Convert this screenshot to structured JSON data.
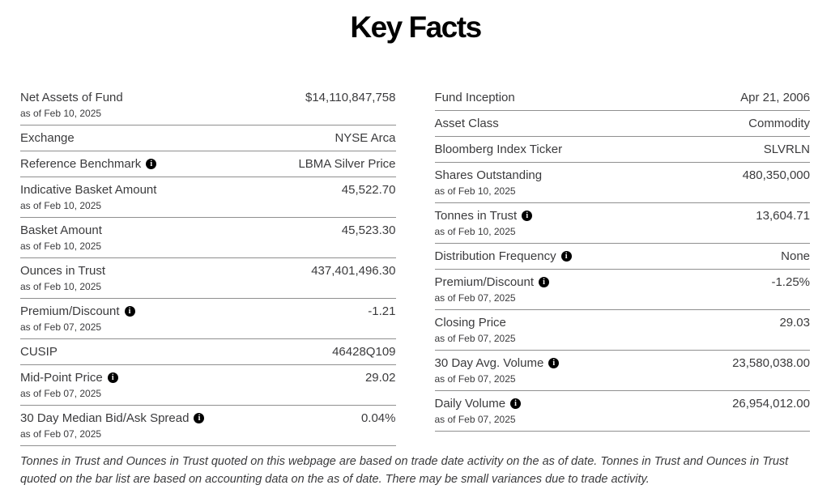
{
  "title": "Key Facts",
  "info_icon_glyph": "i",
  "columns": {
    "left": [
      {
        "label": "Net Assets of Fund",
        "asof": "as of Feb 10, 2025",
        "value": "$14,110,847,758",
        "info": false
      },
      {
        "label": "Exchange",
        "value": "NYSE Arca",
        "info": false
      },
      {
        "label": "Reference Benchmark",
        "value": "LBMA Silver Price",
        "info": true
      },
      {
        "label": "Indicative Basket Amount",
        "asof": "as of Feb 10, 2025",
        "value": "45,522.70",
        "info": false
      },
      {
        "label": "Basket Amount",
        "asof": "as of Feb 10, 2025",
        "value": "45,523.30",
        "info": false
      },
      {
        "label": "Ounces in Trust",
        "asof": "as of Feb 10, 2025",
        "value": "437,401,496.30",
        "info": false
      },
      {
        "label": "Premium/Discount",
        "asof": "as of Feb 07, 2025",
        "value": "-1.21",
        "info": true
      },
      {
        "label": "CUSIP",
        "value": "46428Q109",
        "info": false
      },
      {
        "label": "Mid-Point Price",
        "asof": "as of Feb 07, 2025",
        "value": "29.02",
        "info": true
      },
      {
        "label": "30 Day Median Bid/Ask Spread",
        "asof": "as of Feb 07, 2025",
        "value": "0.04%",
        "info": true
      }
    ],
    "right": [
      {
        "label": "Fund Inception",
        "value": "Apr 21, 2006",
        "info": false
      },
      {
        "label": "Asset Class",
        "value": "Commodity",
        "info": false
      },
      {
        "label": "Bloomberg Index Ticker",
        "value": "SLVRLN",
        "info": false
      },
      {
        "label": "Shares Outstanding",
        "asof": "as of Feb 10, 2025",
        "value": "480,350,000",
        "info": false
      },
      {
        "label": "Tonnes in Trust",
        "asof": "as of Feb 10, 2025",
        "value": "13,604.71",
        "info": true
      },
      {
        "label": "Distribution Frequency",
        "value": "None",
        "info": true
      },
      {
        "label": "Premium/Discount",
        "asof": "as of Feb 07, 2025",
        "value": "-1.25%",
        "info": true
      },
      {
        "label": "Closing Price",
        "asof": "as of Feb 07, 2025",
        "value": "29.03",
        "info": false
      },
      {
        "label": "30 Day Avg. Volume",
        "asof": "as of Feb 07, 2025",
        "value": "23,580,038.00",
        "info": true
      },
      {
        "label": "Daily Volume",
        "asof": "as of Feb 07, 2025",
        "value": "26,954,012.00",
        "info": true
      }
    ]
  },
  "footnote": "Tonnes in Trust and Ounces in Trust quoted on this webpage are based on trade date activity on the as of date. Tonnes in Trust and Ounces in Trust quoted on the bar list are based on accounting data on the as of date. There may be small variances due to trade activity.",
  "colors": {
    "background": "#ffffff",
    "title_text": "#000000",
    "body_text": "#3b3b3d",
    "divider": "#8f8f8f",
    "info_icon_bg": "#000000",
    "info_icon_fg": "#ffffff"
  }
}
